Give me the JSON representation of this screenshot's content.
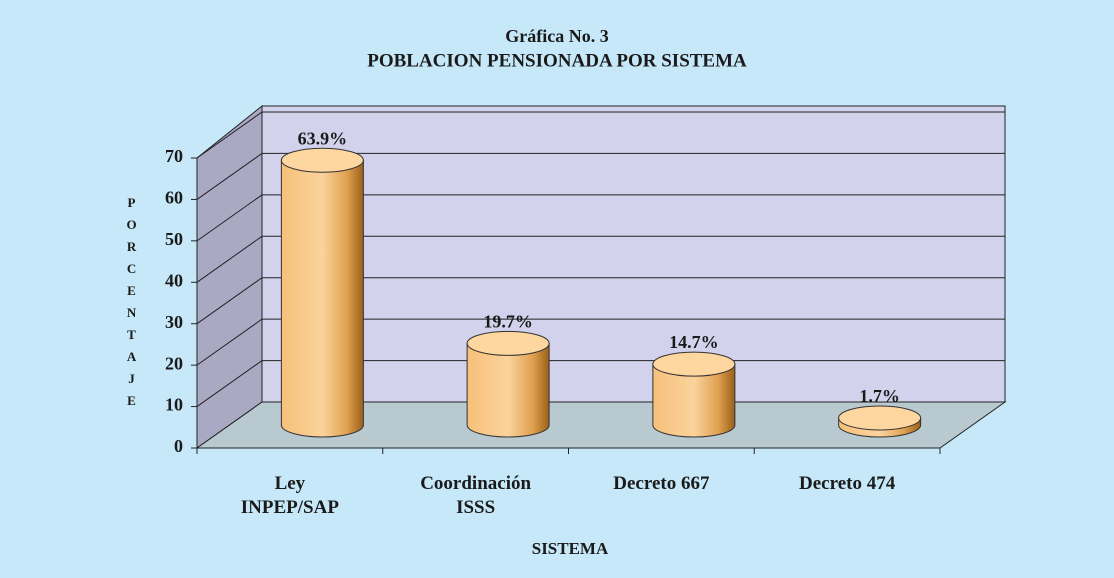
{
  "chart_data": {
    "type": "bar3d",
    "title": "Gráfica No. 3",
    "subtitle": "POBLACION PENSIONADA POR SISTEMA",
    "categories": [
      "Ley\nINPEP/SAP",
      "Coordinación\nISSS",
      "Decreto  667",
      "Decreto  474"
    ],
    "values": [
      63.9,
      19.7,
      14.7,
      1.7
    ],
    "value_labels": [
      "63.9%",
      "19.7%",
      "14.7%",
      "1.7%"
    ],
    "color": "#f9c98a",
    "ylim": [
      0,
      70
    ],
    "yticks": [
      0,
      10,
      20,
      30,
      40,
      50,
      60,
      70
    ],
    "grid": true,
    "ylabel": "PORCENTAJE",
    "xlabel": "SISTEMA"
  }
}
